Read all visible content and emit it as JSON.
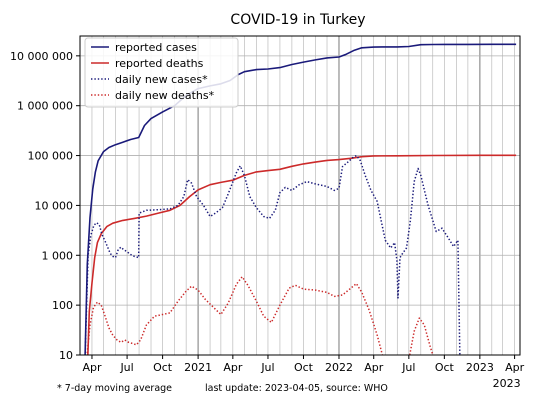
{
  "chart_data": {
    "type": "line",
    "title": "COVID-19 in Turkey",
    "y_scale": "log",
    "ylim": [
      10,
      25000000
    ],
    "xlim": [
      "2020-03-01",
      "2023-04-15"
    ],
    "grid": true,
    "legend_position": "top-left",
    "y_tick_values": [
      10,
      100,
      1000,
      10000,
      100000,
      1000000,
      10000000
    ],
    "y_tick_labels": [
      "10",
      "100",
      "1 000",
      "10 000",
      "100 000",
      "1 000 000",
      "10 000 000"
    ],
    "x_ticks": [
      {
        "date": "2020-04-01",
        "label": "Apr"
      },
      {
        "date": "2020-07-01",
        "label": "Jul"
      },
      {
        "date": "2020-10-01",
        "label": "Oct"
      },
      {
        "date": "2021-01-01",
        "label": "2021"
      },
      {
        "date": "2021-04-01",
        "label": "Apr"
      },
      {
        "date": "2021-07-01",
        "label": "Jul"
      },
      {
        "date": "2021-10-01",
        "label": "Oct"
      },
      {
        "date": "2022-01-01",
        "label": "2022"
      },
      {
        "date": "2022-04-01",
        "label": "Apr"
      },
      {
        "date": "2022-07-01",
        "label": "Jul"
      },
      {
        "date": "2022-10-01",
        "label": "Oct"
      },
      {
        "date": "2023-01-01",
        "label": "2023"
      },
      {
        "date": "2023-04-01",
        "label": "Apr"
      }
    ],
    "x_sublabel": "2023",
    "colors": {
      "cases": "#1a1a7a",
      "deaths": "#cc2a2a",
      "grid": "#b0b0b0",
      "year_line": "#909090"
    },
    "series": [
      {
        "name": "reported cases",
        "style": "solid",
        "color": "#1a1a7a",
        "points": [
          [
            "2020-03-11",
            1
          ],
          [
            "2020-03-20",
            670
          ],
          [
            "2020-03-27",
            5700
          ],
          [
            "2020-04-03",
            21000
          ],
          [
            "2020-04-10",
            47000
          ],
          [
            "2020-04-17",
            78000
          ],
          [
            "2020-05-01",
            120000
          ],
          [
            "2020-05-15",
            145000
          ],
          [
            "2020-06-01",
            165000
          ],
          [
            "2020-06-20",
            185000
          ],
          [
            "2020-07-10",
            210000
          ],
          [
            "2020-07-31",
            230000
          ],
          [
            "2020-08-15",
            400000
          ],
          [
            "2020-09-01",
            550000
          ],
          [
            "2020-10-01",
            750000
          ],
          [
            "2020-11-01",
            1000000
          ],
          [
            "2020-12-01",
            1600000
          ],
          [
            "2021-01-01",
            2200000
          ],
          [
            "2021-02-01",
            2500000
          ],
          [
            "2021-03-01",
            2750000
          ],
          [
            "2021-03-25",
            3200000
          ],
          [
            "2021-04-15",
            4200000
          ],
          [
            "2021-05-01",
            4800000
          ],
          [
            "2021-06-01",
            5300000
          ],
          [
            "2021-07-01",
            5450000
          ],
          [
            "2021-08-01",
            5800000
          ],
          [
            "2021-09-01",
            6700000
          ],
          [
            "2021-10-01",
            7500000
          ],
          [
            "2021-11-01",
            8300000
          ],
          [
            "2021-12-01",
            9100000
          ],
          [
            "2022-01-01",
            9500000
          ],
          [
            "2022-01-20",
            10800000
          ],
          [
            "2022-02-10",
            13000000
          ],
          [
            "2022-03-01",
            14500000
          ],
          [
            "2022-04-01",
            15000000
          ],
          [
            "2022-05-01",
            15100000
          ],
          [
            "2022-06-01",
            15100000
          ],
          [
            "2022-07-01",
            15400000
          ],
          [
            "2022-08-01",
            16700000
          ],
          [
            "2022-09-01",
            16900000
          ],
          [
            "2022-10-01",
            16950000
          ],
          [
            "2022-12-01",
            17000000
          ],
          [
            "2023-02-01",
            17040000
          ],
          [
            "2023-04-05",
            17050000
          ]
        ]
      },
      {
        "name": "reported deaths",
        "style": "solid",
        "color": "#cc2a2a",
        "points": [
          [
            "2020-03-17",
            1
          ],
          [
            "2020-03-25",
            75
          ],
          [
            "2020-04-01",
            280
          ],
          [
            "2020-04-08",
            900
          ],
          [
            "2020-04-15",
            1800
          ],
          [
            "2020-04-25",
            2700
          ],
          [
            "2020-05-10",
            3800
          ],
          [
            "2020-05-25",
            4400
          ],
          [
            "2020-06-20",
            5000
          ],
          [
            "2020-07-20",
            5500
          ],
          [
            "2020-08-20",
            6100
          ],
          [
            "2020-09-20",
            7000
          ],
          [
            "2020-10-20",
            8000
          ],
          [
            "2020-11-15",
            10000
          ],
          [
            "2020-12-10",
            15000
          ],
          [
            "2021-01-01",
            20500
          ],
          [
            "2021-02-01",
            26000
          ],
          [
            "2021-03-01",
            29000
          ],
          [
            "2021-04-01",
            32000
          ],
          [
            "2021-05-01",
            40000
          ],
          [
            "2021-06-01",
            47000
          ],
          [
            "2021-07-01",
            50000
          ],
          [
            "2021-08-01",
            53000
          ],
          [
            "2021-09-01",
            61000
          ],
          [
            "2021-10-01",
            68000
          ],
          [
            "2021-11-01",
            74000
          ],
          [
            "2021-12-01",
            80000
          ],
          [
            "2022-01-01",
            83000
          ],
          [
            "2022-02-01",
            88000
          ],
          [
            "2022-03-01",
            95000
          ],
          [
            "2022-04-01",
            98500
          ],
          [
            "2022-06-01",
            99000
          ],
          [
            "2022-09-01",
            100500
          ],
          [
            "2023-01-01",
            101000
          ],
          [
            "2023-04-05",
            101400
          ]
        ]
      },
      {
        "name": "daily new cases*",
        "style": "dotted",
        "color": "#1a1a7a",
        "points": [
          [
            "2020-03-14",
            8
          ],
          [
            "2020-03-22",
            1000
          ],
          [
            "2020-03-29",
            2500
          ],
          [
            "2020-04-06",
            4000
          ],
          [
            "2020-04-13",
            4500
          ],
          [
            "2020-04-20",
            4100
          ],
          [
            "2020-04-27",
            2600
          ],
          [
            "2020-05-04",
            2000
          ],
          [
            "2020-05-11",
            1500
          ],
          [
            "2020-05-18",
            1100
          ],
          [
            "2020-05-25",
            950
          ],
          [
            "2020-06-01",
            900
          ],
          [
            "2020-06-08",
            1300
          ],
          [
            "2020-06-15",
            1450
          ],
          [
            "2020-06-22",
            1300
          ],
          [
            "2020-06-29",
            1200
          ],
          [
            "2020-07-06",
            1100
          ],
          [
            "2020-07-13",
            1000
          ],
          [
            "2020-07-20",
            950
          ],
          [
            "2020-07-31",
            900
          ],
          [
            "2020-08-01",
            7000
          ],
          [
            "2020-08-20",
            8000
          ],
          [
            "2020-09-20",
            8200
          ],
          [
            "2020-10-20",
            8500
          ],
          [
            "2020-11-10",
            10000
          ],
          [
            "2020-11-25",
            15000
          ],
          [
            "2020-12-05",
            33000
          ],
          [
            "2020-12-15",
            28000
          ],
          [
            "2020-12-28",
            15000
          ],
          [
            "2021-01-15",
            10000
          ],
          [
            "2021-02-01",
            6000
          ],
          [
            "2021-02-15",
            7000
          ],
          [
            "2021-03-05",
            9000
          ],
          [
            "2021-03-20",
            17000
          ],
          [
            "2021-04-10",
            45000
          ],
          [
            "2021-04-20",
            62000
          ],
          [
            "2021-05-01",
            40000
          ],
          [
            "2021-05-15",
            15000
          ],
          [
            "2021-06-01",
            9000
          ],
          [
            "2021-06-20",
            6000
          ],
          [
            "2021-07-05",
            5500
          ],
          [
            "2021-07-20",
            8000
          ],
          [
            "2021-08-01",
            18000
          ],
          [
            "2021-08-15",
            23000
          ],
          [
            "2021-09-01",
            20000
          ],
          [
            "2021-09-20",
            26000
          ],
          [
            "2021-10-10",
            30000
          ],
          [
            "2021-11-01",
            27000
          ],
          [
            "2021-12-01",
            24000
          ],
          [
            "2021-12-20",
            20000
          ],
          [
            "2022-01-01",
            22000
          ],
          [
            "2022-01-10",
            60000
          ],
          [
            "2022-01-25",
            75000
          ],
          [
            "2022-02-05",
            90000
          ],
          [
            "2022-02-15",
            100000
          ],
          [
            "2022-02-25",
            80000
          ],
          [
            "2022-03-10",
            40000
          ],
          [
            "2022-03-25",
            20000
          ],
          [
            "2022-04-10",
            12000
          ],
          [
            "2022-04-20",
            5000
          ],
          [
            "2022-05-01",
            2000
          ],
          [
            "2022-05-15",
            1400
          ],
          [
            "2022-05-25",
            1800
          ],
          [
            "2022-05-31",
            800
          ],
          [
            "2022-06-03",
            140
          ],
          [
            "2022-06-08",
            900
          ],
          [
            "2022-06-15",
            1100
          ],
          [
            "2022-06-25",
            1400
          ],
          [
            "2022-07-05",
            5000
          ],
          [
            "2022-07-15",
            30000
          ],
          [
            "2022-07-25",
            55000
          ],
          [
            "2022-08-01",
            40000
          ],
          [
            "2022-08-20",
            10000
          ],
          [
            "2022-09-10",
            3000
          ],
          [
            "2022-09-25",
            3500
          ],
          [
            "2022-10-10",
            2300
          ],
          [
            "2022-10-25",
            1500
          ],
          [
            "2022-11-05",
            2000
          ],
          [
            "2022-11-10",
            11
          ],
          [
            "2022-11-11",
            8
          ]
        ]
      },
      {
        "name": "daily new deaths*",
        "style": "dotted",
        "color": "#cc2a2a",
        "points": [
          [
            "2020-03-18",
            8
          ],
          [
            "2020-03-27",
            40
          ],
          [
            "2020-04-05",
            90
          ],
          [
            "2020-04-15",
            115
          ],
          [
            "2020-04-25",
            100
          ],
          [
            "2020-05-05",
            60
          ],
          [
            "2020-05-15",
            35
          ],
          [
            "2020-05-25",
            25
          ],
          [
            "2020-06-05",
            20
          ],
          [
            "2020-06-15",
            18
          ],
          [
            "2020-06-25",
            20
          ],
          [
            "2020-07-05",
            18
          ],
          [
            "2020-07-15",
            17
          ],
          [
            "2020-07-25",
            16
          ],
          [
            "2020-08-05",
            20
          ],
          [
            "2020-08-20",
            40
          ],
          [
            "2020-09-10",
            60
          ],
          [
            "2020-10-01",
            65
          ],
          [
            "2020-10-20",
            70
          ],
          [
            "2020-11-10",
            120
          ],
          [
            "2020-12-01",
            190
          ],
          [
            "2020-12-15",
            240
          ],
          [
            "2021-01-01",
            200
          ],
          [
            "2021-01-20",
            130
          ],
          [
            "2021-02-10",
            90
          ],
          [
            "2021-03-01",
            65
          ],
          [
            "2021-03-20",
            110
          ],
          [
            "2021-04-10",
            260
          ],
          [
            "2021-04-25",
            370
          ],
          [
            "2021-05-10",
            250
          ],
          [
            "2021-06-01",
            120
          ],
          [
            "2021-06-20",
            60
          ],
          [
            "2021-07-10",
            45
          ],
          [
            "2021-08-01",
            100
          ],
          [
            "2021-08-25",
            220
          ],
          [
            "2021-09-10",
            250
          ],
          [
            "2021-10-01",
            210
          ],
          [
            "2021-11-01",
            200
          ],
          [
            "2021-12-01",
            180
          ],
          [
            "2021-12-20",
            150
          ],
          [
            "2022-01-10",
            160
          ],
          [
            "2022-02-01",
            220
          ],
          [
            "2022-02-15",
            270
          ],
          [
            "2022-03-01",
            180
          ],
          [
            "2022-03-20",
            80
          ],
          [
            "2022-04-10",
            25
          ],
          [
            "2022-04-25",
            9
          ],
          [
            "2022-07-01",
            8
          ],
          [
            "2022-07-15",
            30
          ],
          [
            "2022-07-28",
            55
          ],
          [
            "2022-08-10",
            40
          ],
          [
            "2022-08-25",
            15
          ],
          [
            "2022-09-05",
            8
          ]
        ]
      }
    ]
  },
  "footnote_left": "* 7-day moving average",
  "footnote_right": "last update: 2023-04-05, source: WHO"
}
